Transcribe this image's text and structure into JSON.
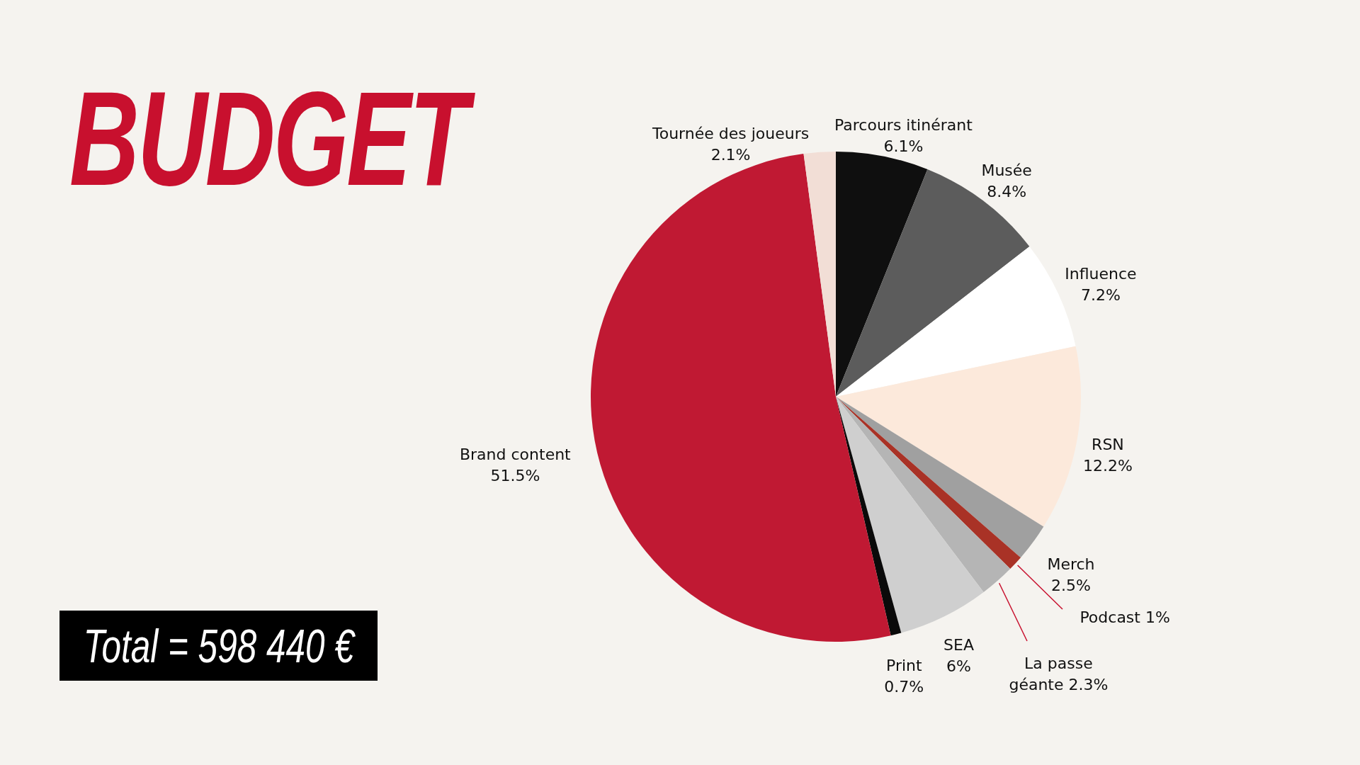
{
  "chart_data": {
    "type": "pie",
    "title": "BUDGET",
    "annotations": [
      "Total = 598 440 €"
    ],
    "categories": [
      "Parcours itinérant",
      "Musée",
      "Influence",
      "RSN",
      "Merch",
      "Podcast",
      "La passe géante",
      "SEA",
      "Print",
      "Brand content",
      "Tournée des joueurs"
    ],
    "values": [
      6.1,
      8.4,
      7.2,
      12.2,
      2.5,
      1,
      2.3,
      6,
      0.7,
      51.5,
      2.1
    ],
    "value_labels": [
      "6.1%",
      "8.4%",
      "7.2%",
      "12.2%",
      "2.5%",
      "1%",
      "2.3%",
      "6%",
      "0.7%",
      "51.5%",
      "2.1%"
    ],
    "colors": [
      "#0f0f0f",
      "#5c5c5c",
      "#ffffff",
      "#fce9db",
      "#a0a0a0",
      "#a93226",
      "#b5b5b5",
      "#cfcfcf",
      "#0a0a0a",
      "#c01933",
      "#f2ded6"
    ]
  }
}
